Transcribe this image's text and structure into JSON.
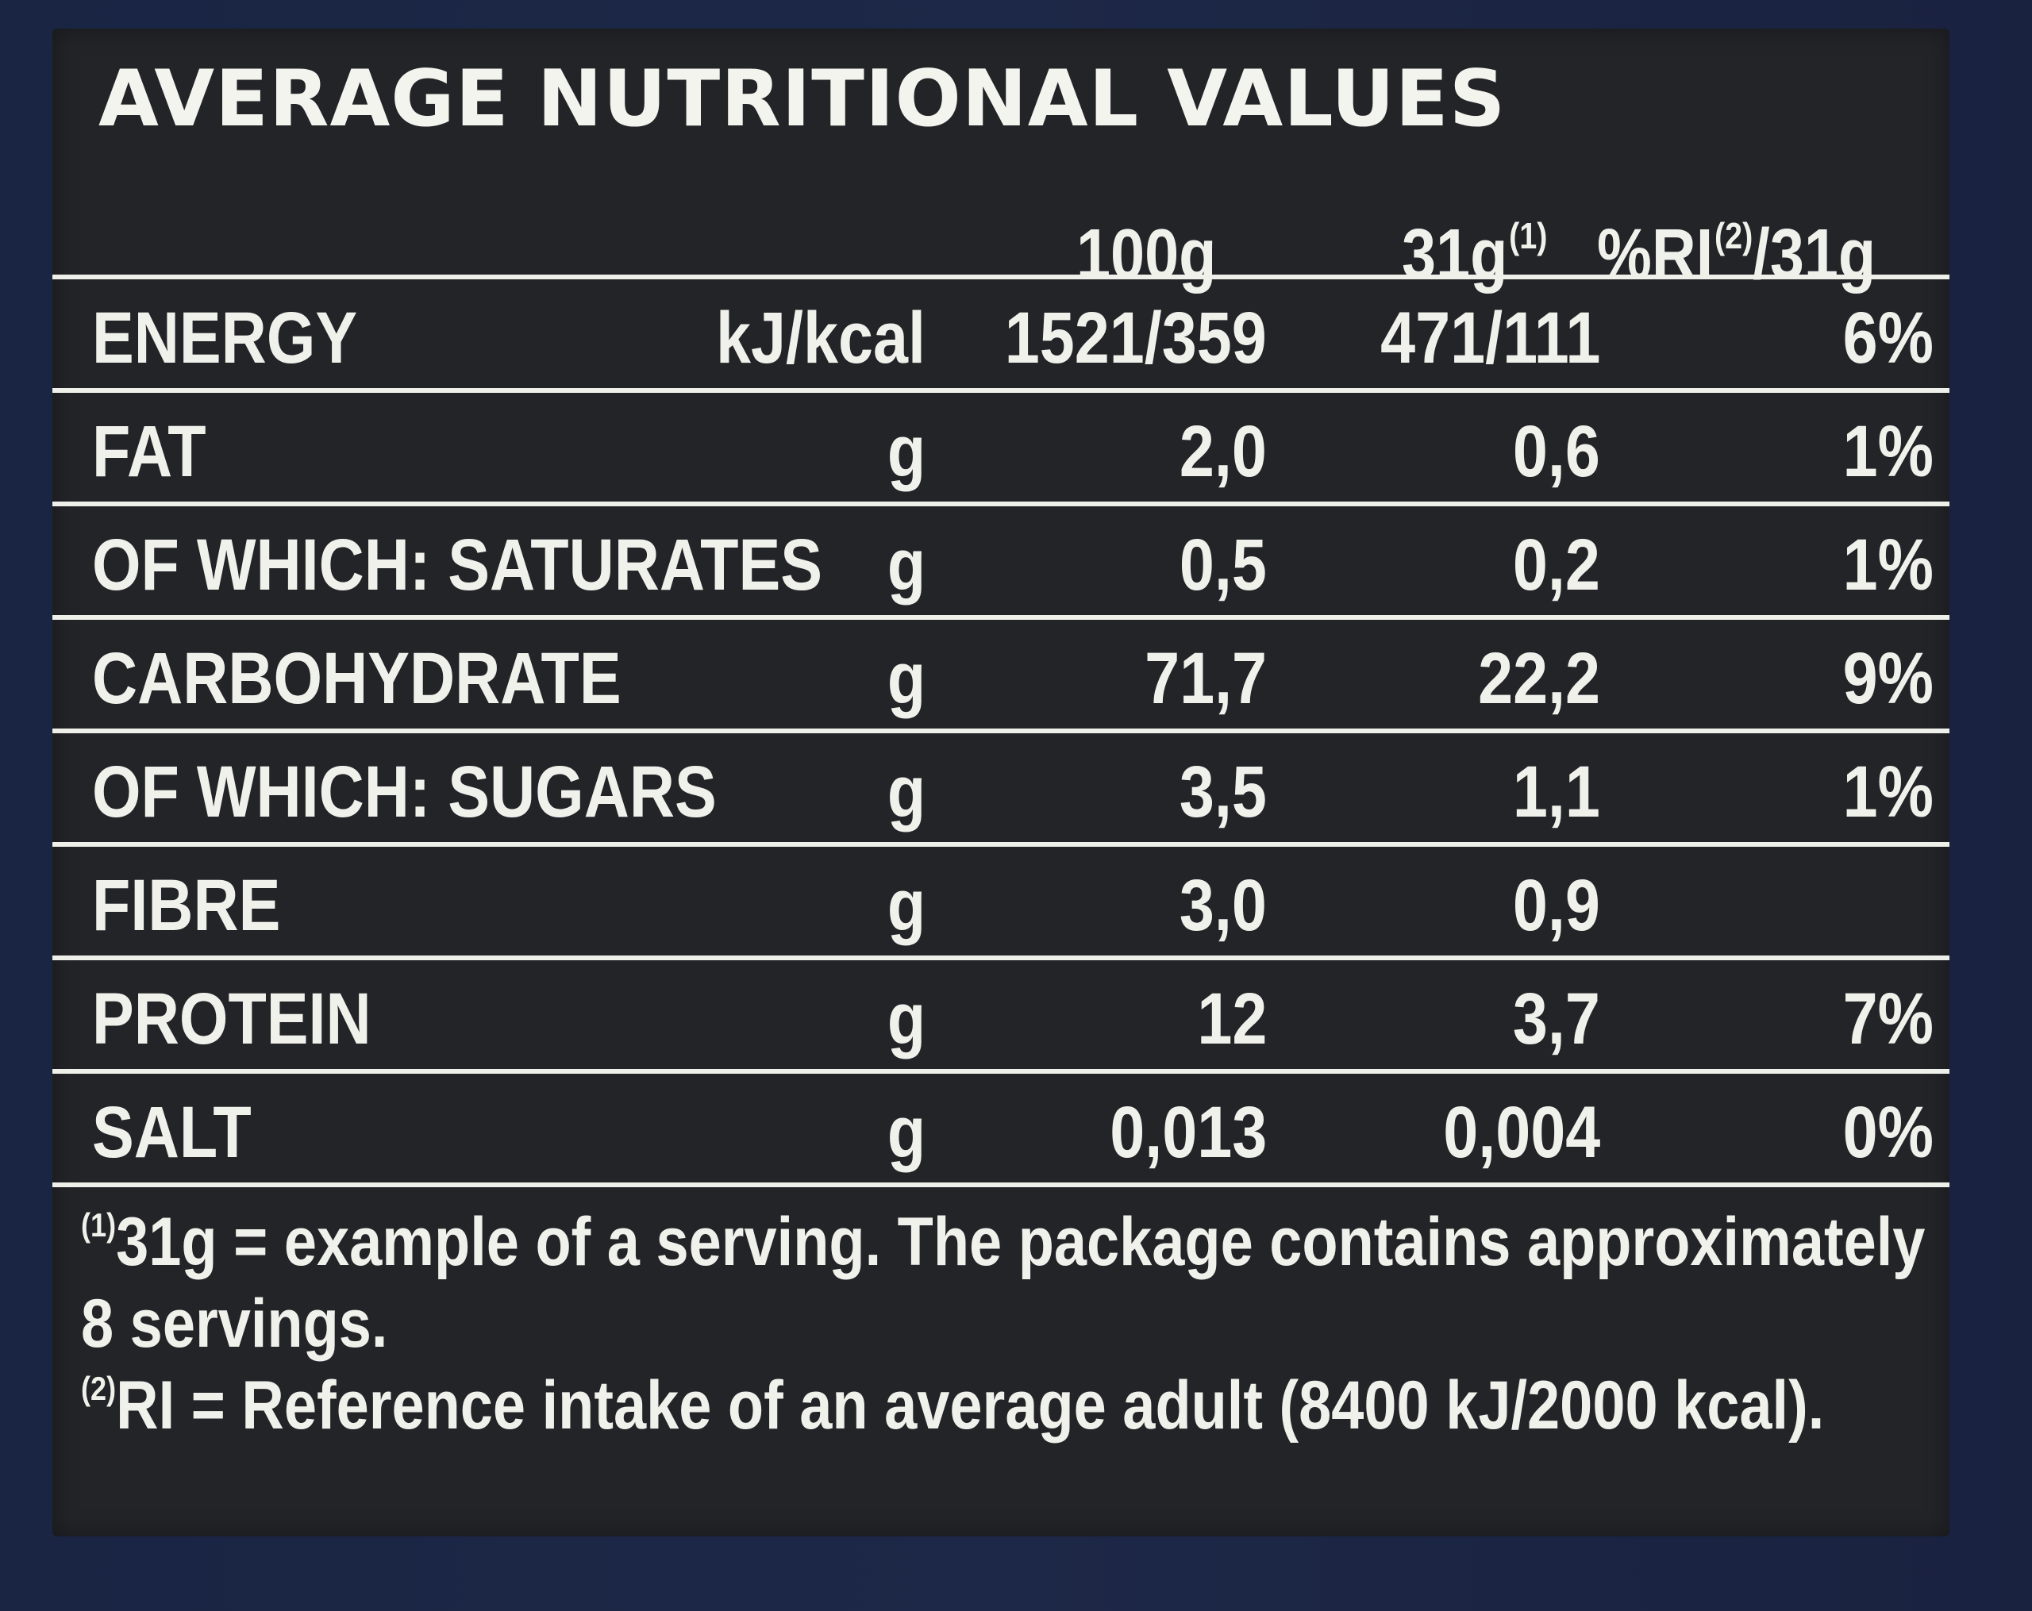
{
  "label": {
    "title": "AVERAGE NUTRITIONAL VALUES",
    "columns": {
      "per_100g": "100g",
      "per_serving": "31g",
      "per_serving_sup": "(1)",
      "ri_prefix": "%RI",
      "ri_sup": "(2)",
      "ri_suffix": "/31g"
    },
    "rows": [
      {
        "name": "ENERGY",
        "unit": "kJ/kcal",
        "per_100g": "1521/359",
        "per_serving": "471/111",
        "ri": "6%"
      },
      {
        "name": "FAT",
        "unit": "g",
        "per_100g": "2,0",
        "per_serving": "0,6",
        "ri": "1%"
      },
      {
        "name": "OF WHICH: SATURATES",
        "unit": "g",
        "per_100g": "0,5",
        "per_serving": "0,2",
        "ri": "1%"
      },
      {
        "name": "CARBOHYDRATE",
        "unit": "g",
        "per_100g": "71,7",
        "per_serving": "22,2",
        "ri": "9%"
      },
      {
        "name": "OF WHICH: SUGARS",
        "unit": "g",
        "per_100g": "3,5",
        "per_serving": "1,1",
        "ri": "1%"
      },
      {
        "name": "FIBRE",
        "unit": "g",
        "per_100g": "3,0",
        "per_serving": "0,9",
        "ri": ""
      },
      {
        "name": "PROTEIN",
        "unit": "g",
        "per_100g": "12",
        "per_serving": "3,7",
        "ri": "7%"
      },
      {
        "name": "SALT",
        "unit": "g",
        "per_100g": "0,013",
        "per_serving": "0,004",
        "ri": "0%"
      }
    ],
    "footnotes": {
      "fn1_marker": "(1)",
      "fn1_line1": "31g = example of a serving. The package contains approximately",
      "fn1_line2": "8 servings.",
      "fn2_marker": "(2)",
      "fn2_text": "RI = Reference intake of an average adult (8400 kJ/2000 kcal)."
    }
  },
  "colors": {
    "background_packaging": "#1c2540",
    "panel": "#232428",
    "text": "#f1f1ec"
  }
}
